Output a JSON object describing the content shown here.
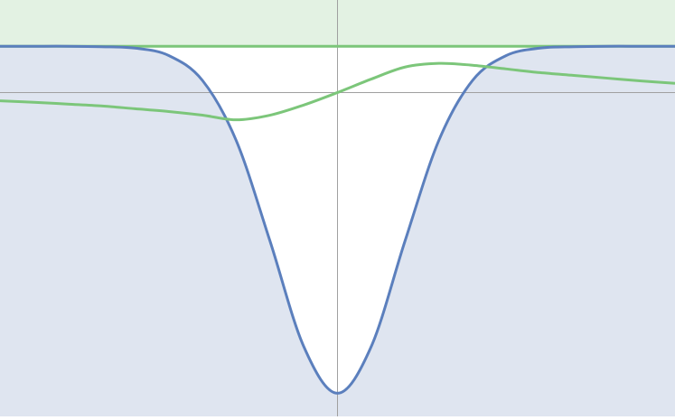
{
  "chart_data": {
    "type": "line",
    "x": [
      -5,
      -4.5,
      -4,
      -3.5,
      -3,
      -2.5,
      -2,
      -1.5,
      -1,
      -0.5,
      0,
      0.5,
      1,
      1.5,
      2,
      2.5,
      3,
      3.5,
      4,
      4.5,
      5
    ],
    "series": [
      {
        "color": "#5b7fbd",
        "fill_color": "#dfe5f0",
        "fill": "below",
        "values": [
          1,
          1,
          1,
          0.99,
          0.96,
          0.8,
          0.26,
          -1.04,
          -3.21,
          -5.49,
          -6.5,
          -5.49,
          -3.21,
          -1.04,
          0.26,
          0.8,
          0.96,
          0.99,
          1,
          1,
          1
        ]
      },
      {
        "color": "#7cc67a",
        "values": [
          -0.18,
          -0.21,
          -0.25,
          -0.29,
          -0.35,
          -0.41,
          -0.49,
          -0.59,
          -0.49,
          -0.27,
          0,
          0.29,
          0.55,
          0.63,
          0.59,
          0.51,
          0.43,
          0.37,
          0.31,
          0.25,
          0.2
        ]
      }
    ],
    "reference_band": {
      "from": 1,
      "line_color": "#7cc67a",
      "fill_color": "#e3f2e3"
    },
    "xlim": [
      -5,
      5
    ],
    "ylim": [
      -7,
      2
    ],
    "axis_color": "#a0a0a0"
  }
}
